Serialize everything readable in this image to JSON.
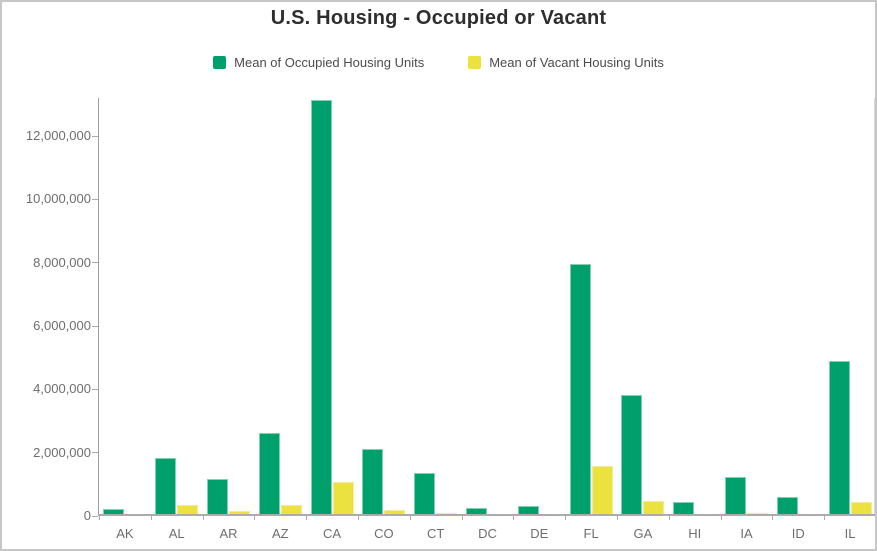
{
  "header": {
    "title": "U.S. Housing - Occupied or Vacant"
  },
  "chart_data": {
    "type": "bar",
    "title": "U.S. Housing - Occupied or Vacant",
    "xlabel": "",
    "ylabel": "",
    "categories": [
      "AK",
      "AL",
      "AR",
      "AZ",
      "CA",
      "CO",
      "CT",
      "DC",
      "DE",
      "FL",
      "GA",
      "HI",
      "IA",
      "ID",
      "IL"
    ],
    "series": [
      {
        "key": "occupied",
        "name": "Mean of Occupied Housing Units",
        "color": "#00a06d",
        "values": [
          230000,
          1845000,
          1160000,
          2630000,
          13150000,
          2110000,
          1350000,
          255000,
          320000,
          7950000,
          3820000,
          430000,
          1230000,
          610000,
          4900000
        ]
      },
      {
        "key": "vacant",
        "name": "Mean of Vacant Housing Units",
        "color": "#ece23f",
        "values": [
          70000,
          340000,
          165000,
          355000,
          1075000,
          200000,
          105000,
          30000,
          55000,
          1580000,
          465000,
          60000,
          100000,
          60000,
          450000
        ]
      }
    ],
    "ylim": [
      0,
      13200000
    ],
    "yticks": [
      0,
      2000000,
      4000000,
      6000000,
      8000000,
      10000000,
      12000000
    ],
    "ytick_labels": [
      "0",
      "2,000,000",
      "4,000,000",
      "6,000,000",
      "8,000,000",
      "10,000,000",
      "12,000,000"
    ],
    "grid": false,
    "legend_position": "top",
    "colors": {
      "title_text": "#2e2e2e",
      "axis_text": "#6e6e6e",
      "legend_text": "#4c4c4c",
      "axis_line": "#9e9e9e",
      "tick_line": "#ababab",
      "frame_border": "#c6c6c6"
    }
  }
}
